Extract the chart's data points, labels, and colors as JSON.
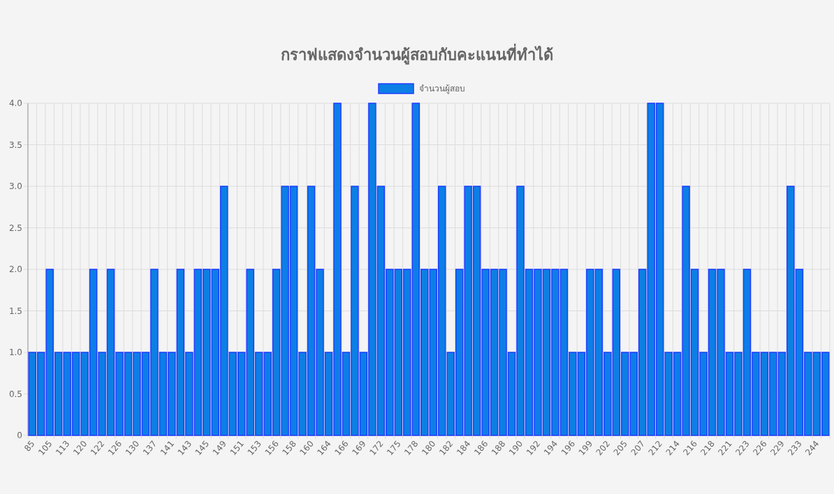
{
  "chart_data": {
    "type": "bar",
    "title": "กราฟแสดงจำนวนผู้สอบกับคะแนนที่ทำได้",
    "categories": [
      "85",
      null,
      "105",
      null,
      "113",
      null,
      "120",
      null,
      "122",
      null,
      "126",
      null,
      "130",
      null,
      "137",
      null,
      "141",
      null,
      "143",
      null,
      "145",
      null,
      "149",
      null,
      "151",
      null,
      "153",
      null,
      "156",
      null,
      "158",
      null,
      "160",
      null,
      "164",
      null,
      "166",
      null,
      "169",
      null,
      "172",
      null,
      "175",
      null,
      "178",
      null,
      "180",
      null,
      "182",
      null,
      "184",
      null,
      "186",
      null,
      "188",
      null,
      "190",
      null,
      "192",
      null,
      "194",
      null,
      "196",
      null,
      "199",
      null,
      "202",
      null,
      "205",
      null,
      "207",
      null,
      "212",
      null,
      "214",
      null,
      "216",
      null,
      "218",
      null,
      "221",
      null,
      "223",
      null,
      "226",
      null,
      "229",
      null,
      "233",
      null,
      "244",
      null
    ],
    "series": [
      {
        "name": "จำนวนผู้สอบ",
        "color": "#0c7fe6",
        "values": [
          1,
          1,
          2,
          1,
          1,
          1,
          1,
          2,
          1,
          2,
          1,
          1,
          1,
          1,
          2,
          1,
          1,
          2,
          1,
          2,
          2,
          2,
          3,
          1,
          1,
          2,
          1,
          1,
          2,
          3,
          3,
          1,
          3,
          2,
          1,
          4,
          1,
          3,
          1,
          4,
          3,
          2,
          2,
          2,
          4,
          2,
          2,
          3,
          1,
          2,
          3,
          3,
          2,
          2,
          2,
          1,
          3,
          2,
          2,
          2,
          2,
          2,
          1,
          1,
          2,
          2,
          1,
          2,
          1,
          1,
          2,
          4,
          4,
          1,
          1,
          3,
          2,
          1,
          2,
          2,
          1,
          1,
          2,
          1,
          1,
          1,
          1,
          3,
          2,
          1,
          1,
          1
        ]
      }
    ],
    "ylim": [
      0,
      4
    ],
    "yticks": [
      0,
      0.5,
      {
        "value": 1,
        "label": "1.0"
      },
      1.5,
      {
        "value": 2,
        "label": "2.0"
      },
      2.5,
      {
        "value": 3,
        "label": "3.0"
      },
      3.5,
      {
        "value": 4,
        "label": "4.0"
      }
    ],
    "grid": true,
    "legend": "top"
  }
}
